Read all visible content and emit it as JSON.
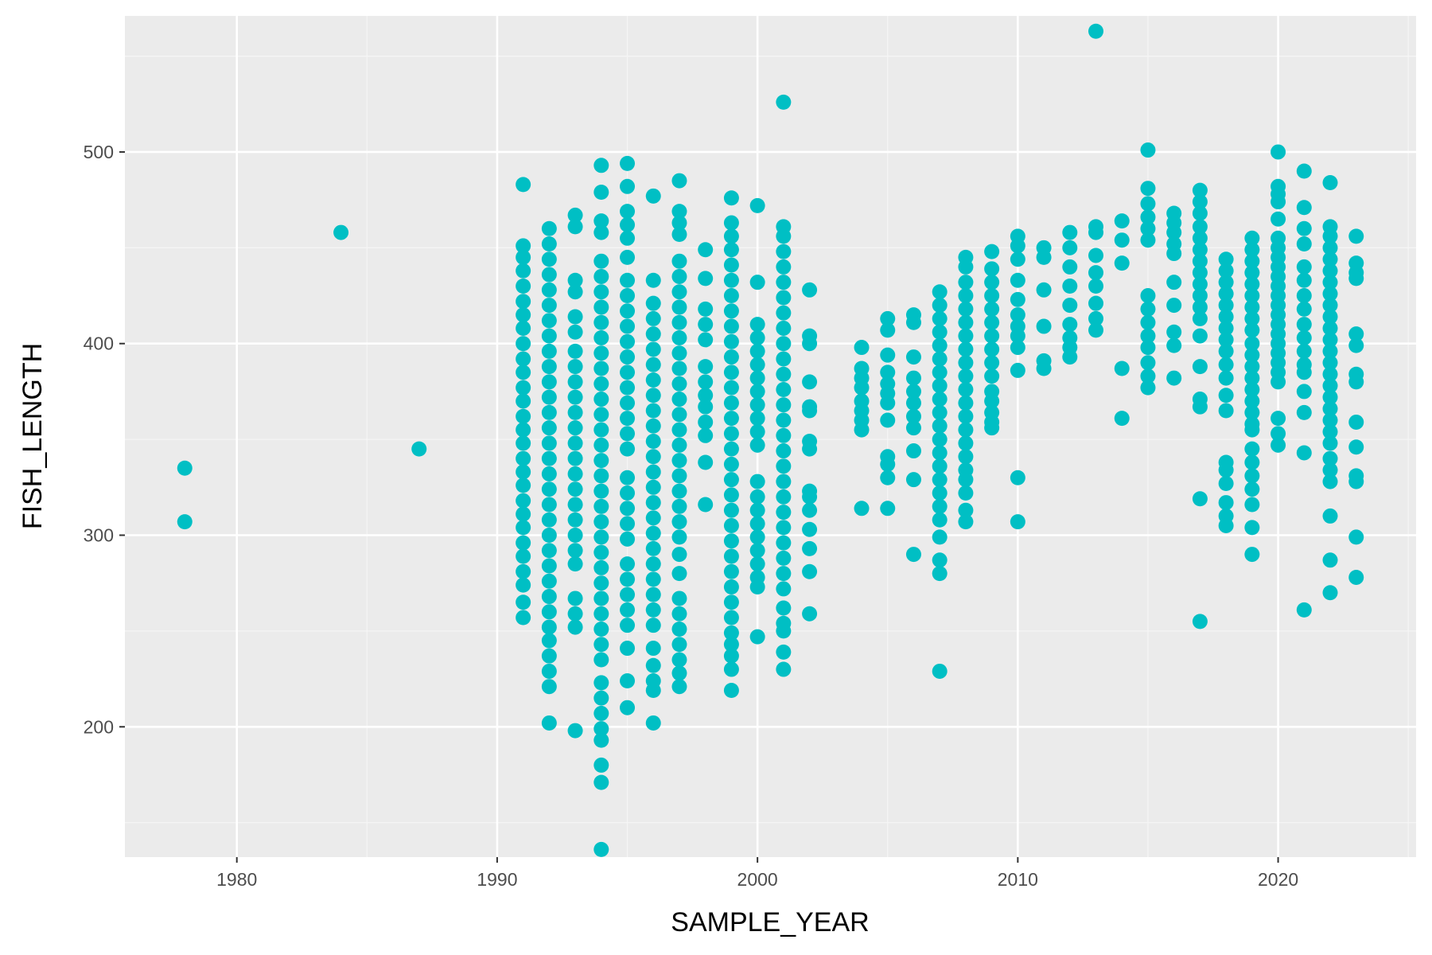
{
  "chart_data": {
    "type": "scatter",
    "title": "",
    "xlabel": "SAMPLE_YEAR",
    "ylabel": "FISH_LENGTH",
    "xlim": [
      1975.7,
      2025.3
    ],
    "ylim": [
      132,
      571
    ],
    "x_ticks": [
      1980,
      1990,
      2000,
      2010,
      2020
    ],
    "y_ticks": [
      200,
      300,
      400,
      500
    ],
    "x_tick_labels": [
      "1980",
      "1990",
      "2000",
      "2010",
      "2020"
    ],
    "y_tick_labels": [
      "200",
      "300",
      "400",
      "500"
    ],
    "grid": true,
    "legend": "none",
    "colors": {
      "point": "#00bfc4",
      "panel": "#ebebeb",
      "grid_major": "#ffffff",
      "grid_minor": "#f5f5f5"
    },
    "points_by_year": [
      {
        "year": 1978,
        "lengths": [
          335,
          307
        ]
      },
      {
        "year": 1984,
        "lengths": [
          458
        ]
      },
      {
        "year": 1987,
        "lengths": [
          345
        ]
      },
      {
        "year": 1991,
        "lengths": [
          483,
          451,
          445,
          438,
          430,
          422,
          415,
          408,
          400,
          392,
          385,
          377,
          370,
          362,
          355,
          348,
          340,
          333,
          326,
          318,
          311,
          304,
          296,
          289,
          281,
          274,
          265,
          257
        ]
      },
      {
        "year": 1992,
        "lengths": [
          460,
          452,
          444,
          436,
          428,
          420,
          412,
          404,
          396,
          388,
          380,
          372,
          364,
          356,
          348,
          340,
          332,
          324,
          316,
          308,
          300,
          292,
          284,
          276,
          268,
          260,
          252,
          245,
          237,
          229,
          221,
          202
        ]
      },
      {
        "year": 1993,
        "lengths": [
          467,
          461,
          433,
          427,
          414,
          406,
          396,
          388,
          380,
          372,
          364,
          356,
          348,
          340,
          332,
          324,
          316,
          308,
          300,
          292,
          285,
          267,
          259,
          252,
          198
        ]
      },
      {
        "year": 1994,
        "lengths": [
          493,
          479,
          464,
          458,
          443,
          435,
          427,
          419,
          411,
          403,
          395,
          387,
          379,
          371,
          363,
          355,
          347,
          339,
          331,
          323,
          315,
          307,
          299,
          291,
          283,
          275,
          267,
          259,
          251,
          243,
          235,
          223,
          215,
          207,
          199,
          193,
          180,
          171,
          136
        ]
      },
      {
        "year": 1995,
        "lengths": [
          494,
          482,
          469,
          462,
          455,
          445,
          433,
          425,
          417,
          409,
          401,
          393,
          385,
          377,
          369,
          361,
          353,
          345,
          330,
          322,
          314,
          306,
          298,
          285,
          277,
          269,
          261,
          253,
          241,
          224,
          210
        ]
      },
      {
        "year": 1996,
        "lengths": [
          477,
          433,
          421,
          413,
          405,
          397,
          389,
          381,
          373,
          365,
          357,
          349,
          341,
          333,
          325,
          317,
          309,
          301,
          293,
          285,
          277,
          269,
          261,
          253,
          241,
          232,
          224,
          219,
          202
        ]
      },
      {
        "year": 1997,
        "lengths": [
          485,
          469,
          463,
          457,
          443,
          435,
          427,
          419,
          411,
          403,
          395,
          387,
          379,
          371,
          363,
          355,
          347,
          339,
          331,
          323,
          315,
          307,
          299,
          290,
          280,
          267,
          259,
          251,
          243,
          235,
          228,
          221
        ]
      },
      {
        "year": 1998,
        "lengths": [
          449,
          434,
          418,
          410,
          402,
          388,
          380,
          373,
          367,
          359,
          352,
          338,
          316
        ]
      },
      {
        "year": 1999,
        "lengths": [
          476,
          463,
          456,
          449,
          441,
          433,
          425,
          417,
          409,
          401,
          393,
          385,
          377,
          369,
          361,
          353,
          345,
          337,
          329,
          321,
          313,
          305,
          297,
          289,
          281,
          273,
          265,
          257,
          249,
          243,
          237,
          230,
          219
        ]
      },
      {
        "year": 2000,
        "lengths": [
          472,
          432,
          410,
          403,
          396,
          389,
          382,
          375,
          368,
          361,
          354,
          347,
          328,
          320,
          313,
          306,
          299,
          292,
          285,
          278,
          273,
          247
        ]
      },
      {
        "year": 2001,
        "lengths": [
          526,
          461,
          456,
          448,
          440,
          432,
          424,
          416,
          408,
          400,
          392,
          384,
          376,
          368,
          360,
          352,
          344,
          336,
          328,
          320,
          312,
          304,
          296,
          288,
          280,
          272,
          262,
          254,
          250,
          239,
          230
        ]
      },
      {
        "year": 2002,
        "lengths": [
          428,
          404,
          400,
          380,
          367,
          365,
          349,
          345,
          323,
          320,
          313,
          303,
          293,
          281,
          259
        ]
      },
      {
        "year": 2004,
        "lengths": [
          398,
          387,
          382,
          377,
          370,
          365,
          360,
          355,
          314
        ]
      },
      {
        "year": 2005,
        "lengths": [
          413,
          407,
          394,
          385,
          379,
          374,
          369,
          360,
          341,
          337,
          330,
          314
        ]
      },
      {
        "year": 2006,
        "lengths": [
          415,
          411,
          393,
          382,
          375,
          369,
          362,
          356,
          344,
          329,
          290
        ]
      },
      {
        "year": 2007,
        "lengths": [
          427,
          420,
          413,
          406,
          399,
          392,
          385,
          378,
          371,
          364,
          357,
          350,
          343,
          336,
          329,
          322,
          315,
          308,
          299,
          287,
          280,
          229
        ]
      },
      {
        "year": 2008,
        "lengths": [
          445,
          440,
          432,
          425,
          418,
          411,
          404,
          397,
          390,
          383,
          376,
          369,
          362,
          355,
          348,
          341,
          334,
          329,
          322,
          313,
          307
        ]
      },
      {
        "year": 2009,
        "lengths": [
          448,
          439,
          432,
          425,
          418,
          411,
          404,
          397,
          390,
          383,
          375,
          370,
          364,
          359,
          356
        ]
      },
      {
        "year": 2010,
        "lengths": [
          456,
          451,
          444,
          433,
          423,
          415,
          409,
          404,
          398,
          386,
          330,
          307
        ]
      },
      {
        "year": 2011,
        "lengths": [
          450,
          445,
          428,
          409,
          391,
          387
        ]
      },
      {
        "year": 2012,
        "lengths": [
          458,
          450,
          440,
          430,
          420,
          410,
          403,
          398,
          393
        ]
      },
      {
        "year": 2013,
        "lengths": [
          563,
          461,
          458,
          446,
          437,
          430,
          421,
          413,
          407
        ]
      },
      {
        "year": 2014,
        "lengths": [
          464,
          454,
          442,
          387,
          361
        ]
      },
      {
        "year": 2015,
        "lengths": [
          501,
          481,
          473,
          466,
          460,
          454,
          425,
          418,
          411,
          404,
          398,
          390,
          383,
          377
        ]
      },
      {
        "year": 2016,
        "lengths": [
          468,
          463,
          458,
          452,
          447,
          432,
          420,
          406,
          399,
          382
        ]
      },
      {
        "year": 2017,
        "lengths": [
          480,
          474,
          468,
          461,
          455,
          449,
          443,
          437,
          431,
          425,
          419,
          413,
          404,
          388,
          371,
          367,
          319,
          255
        ]
      },
      {
        "year": 2018,
        "lengths": [
          444,
          438,
          432,
          426,
          420,
          414,
          408,
          402,
          396,
          389,
          382,
          373,
          365,
          338,
          334,
          327,
          317,
          310,
          305
        ]
      },
      {
        "year": 2019,
        "lengths": [
          455,
          449,
          443,
          437,
          431,
          425,
          419,
          413,
          407,
          400,
          394,
          388,
          382,
          376,
          370,
          364,
          358,
          355,
          345,
          338,
          331,
          324,
          316,
          304,
          290
        ]
      },
      {
        "year": 2020,
        "lengths": [
          500,
          482,
          478,
          474,
          465,
          455,
          450,
          445,
          440,
          435,
          430,
          425,
          420,
          415,
          410,
          405,
          400,
          395,
          390,
          385,
          380,
          361,
          353,
          347
        ]
      },
      {
        "year": 2021,
        "lengths": [
          490,
          471,
          460,
          452,
          440,
          433,
          425,
          418,
          410,
          403,
          396,
          389,
          385,
          375,
          364,
          343,
          261
        ]
      },
      {
        "year": 2022,
        "lengths": [
          484,
          461,
          456,
          450,
          444,
          438,
          432,
          426,
          420,
          414,
          408,
          402,
          396,
          390,
          384,
          378,
          372,
          366,
          360,
          354,
          348,
          340,
          334,
          328,
          310,
          287,
          270
        ]
      },
      {
        "year": 2023,
        "lengths": [
          456,
          442,
          437,
          434,
          405,
          399,
          384,
          380,
          359,
          346,
          331,
          328,
          299,
          278
        ]
      }
    ]
  }
}
